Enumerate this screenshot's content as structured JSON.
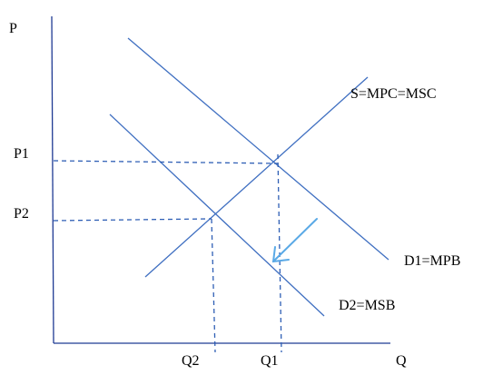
{
  "axes": {
    "y_label": "P",
    "x_label": "Q"
  },
  "curves": {
    "supply": "S=MPC=MSC",
    "private_demand": "D1=MPB",
    "social_demand": "D2=MSB"
  },
  "price_ticks": {
    "p1": "P1",
    "p2": "P2"
  },
  "quantity_ticks": {
    "q1": "Q1",
    "q2": "Q2"
  },
  "colors": {
    "axis": "#1f3a93",
    "curve": "#3f6fc1",
    "guide": "#2f5fb5",
    "shift_arrow": "#5aa9e6"
  }
}
